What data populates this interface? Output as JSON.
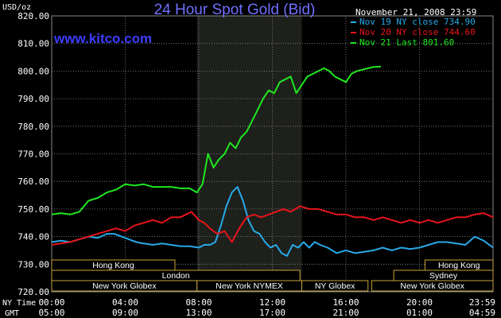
{
  "title": "24 Hour Spot Gold (Bid)",
  "unit_label": "USD/oz",
  "site": "www.kitco.com",
  "timestamp": "November 21, 2008 23:59",
  "colors": {
    "background": "#000000",
    "title": "#6f6fff",
    "site": "#3d3dff",
    "grid": "#8a8a8a",
    "session_band": "#1e201c",
    "nov19": "#27a9e8",
    "nov20": "#e8141a",
    "nov21": "#1ee81e",
    "market_box": "#c8a43a",
    "text": "#ffffff"
  },
  "row_labels": {
    "ny_time": "NY Time",
    "gmt": "GMT"
  },
  "markets": {
    "row1": [
      {
        "label": "Hong Kong",
        "start": 0,
        "end": 6.7
      },
      {
        "label": "Hong Kong",
        "start": 20.3,
        "end": 24
      }
    ],
    "row2": [
      {
        "label": "London",
        "start": 0,
        "end": 13.5
      },
      {
        "label": "Sydney",
        "start": 18.6,
        "end": 24
      }
    ],
    "row3": [
      {
        "label": "New York Globex",
        "start": 0,
        "end": 7.9
      },
      {
        "label": "New York NYMEX",
        "start": 7.9,
        "end": 13.6
      },
      {
        "label": "NY Globex",
        "start": 13.6,
        "end": 17.2
      },
      {
        "label": "New York Globex",
        "start": 17.4,
        "end": 24
      }
    ]
  },
  "chart_data": {
    "type": "line",
    "title": "24 Hour Spot Gold (Bid)",
    "ylabel": "USD/oz",
    "ylim": [
      720,
      820
    ],
    "y_ticks": [
      720,
      730,
      740,
      750,
      760,
      770,
      780,
      790,
      800,
      810,
      820
    ],
    "y_tick_labels": [
      "720.00",
      "730.00",
      "740.00",
      "750.00",
      "760.00",
      "770.00",
      "780.00",
      "790.00",
      "800.00",
      "810.00",
      "820.00"
    ],
    "xlim": [
      0,
      24
    ],
    "x_ticks_ny": [
      "00:00",
      "04:00",
      "08:00",
      "12:00",
      "16:00",
      "20:00",
      "23:59"
    ],
    "x_ticks_gmt": [
      "05:00",
      "09:00",
      "13:00",
      "17:00",
      "21:00",
      "01:00",
      "04:59"
    ],
    "x_tick_hours": [
      0,
      4,
      8,
      12,
      16,
      20,
      24
    ],
    "highlight_band": [
      7.9,
      13.6
    ],
    "grid": true,
    "legend_position": "top-right",
    "series": [
      {
        "name": "Nov 19 NY close 734.90",
        "color": "#27a9e8",
        "x": [
          0,
          0.5,
          1,
          1.5,
          2,
          2.5,
          3,
          3.4,
          3.8,
          4.2,
          4.6,
          5,
          5.5,
          6,
          6.5,
          7,
          7.5,
          8,
          8.3,
          8.6,
          8.9,
          9.2,
          9.5,
          9.8,
          10.1,
          10.4,
          10.7,
          11,
          11.3,
          11.6,
          11.9,
          12.2,
          12.5,
          12.8,
          13.1,
          13.4,
          13.7,
          14,
          14.3,
          14.6,
          15,
          15.5,
          16,
          16.5,
          17,
          17.5,
          18,
          18.5,
          19,
          19.5,
          20,
          20.5,
          21,
          21.5,
          22,
          22.5,
          23,
          23.5,
          24
        ],
        "y": [
          738,
          738.5,
          738,
          739,
          740,
          739.5,
          741,
          741,
          740,
          739,
          738,
          737.5,
          737,
          737.5,
          737,
          736.5,
          736.5,
          736,
          737,
          737,
          738,
          744,
          751,
          756,
          758,
          753,
          746,
          742,
          741,
          738,
          736,
          737,
          734,
          733,
          737,
          736,
          738,
          736,
          738,
          737,
          736,
          734,
          735,
          734,
          734.5,
          735,
          736,
          735,
          736,
          735.5,
          736,
          737,
          738,
          738,
          737.5,
          737,
          740,
          738.5,
          736
        ]
      },
      {
        "name": "Nov 20 NY close 744.60",
        "color": "#e8141a",
        "x": [
          0,
          0.5,
          1,
          1.5,
          2,
          2.5,
          3,
          3.5,
          4,
          4.5,
          5,
          5.5,
          6,
          6.5,
          7,
          7.3,
          7.6,
          8,
          8.3,
          8.6,
          9,
          9.4,
          9.8,
          10.2,
          10.6,
          11,
          11.4,
          11.8,
          12.2,
          12.6,
          13,
          13.5,
          14,
          14.5,
          15,
          15.5,
          16,
          16.5,
          17,
          17.5,
          18,
          18.5,
          19,
          19.5,
          20,
          20.5,
          21,
          21.5,
          22,
          22.5,
          23,
          23.5,
          24
        ],
        "y": [
          737,
          737.5,
          738,
          739,
          740,
          741,
          742,
          743,
          742,
          744,
          745,
          746,
          745,
          747,
          747,
          748,
          749,
          746,
          745,
          743,
          741,
          742,
          738,
          743,
          747,
          748,
          747,
          748,
          749,
          750,
          749,
          751,
          750,
          750,
          749,
          748,
          748,
          747,
          747,
          746,
          747,
          746,
          745,
          746,
          745,
          746,
          745,
          746,
          747,
          747,
          748,
          748.5,
          747
        ]
      },
      {
        "name": "Nov 21 Last 801.60",
        "color": "#1ee81e",
        "x": [
          0,
          0.5,
          1,
          1.5,
          2,
          2.5,
          3,
          3.5,
          4,
          4.5,
          5,
          5.5,
          6,
          6.5,
          7,
          7.5,
          7.9,
          8.2,
          8.5,
          8.8,
          9.1,
          9.4,
          9.7,
          10,
          10.3,
          10.6,
          10.9,
          11.2,
          11.5,
          11.8,
          12.1,
          12.4,
          12.7,
          13,
          13.3,
          13.6,
          13.9,
          14.2,
          14.5,
          14.8,
          15.1,
          15.4,
          15.7,
          16,
          16.3,
          16.6,
          16.9,
          17.2,
          17.5,
          17.9
        ],
        "y": [
          748,
          748.5,
          748,
          749,
          753,
          754,
          756,
          757,
          759,
          758.5,
          759,
          758,
          758,
          758,
          757.5,
          757.5,
          756,
          759,
          770,
          765,
          768,
          770,
          774,
          772,
          776,
          778,
          782,
          786,
          790,
          793,
          792,
          796,
          797,
          798,
          792,
          795,
          798,
          799,
          800,
          801,
          800,
          798,
          797,
          796,
          799,
          800,
          800.5,
          801,
          801.5,
          801.6
        ]
      }
    ]
  }
}
